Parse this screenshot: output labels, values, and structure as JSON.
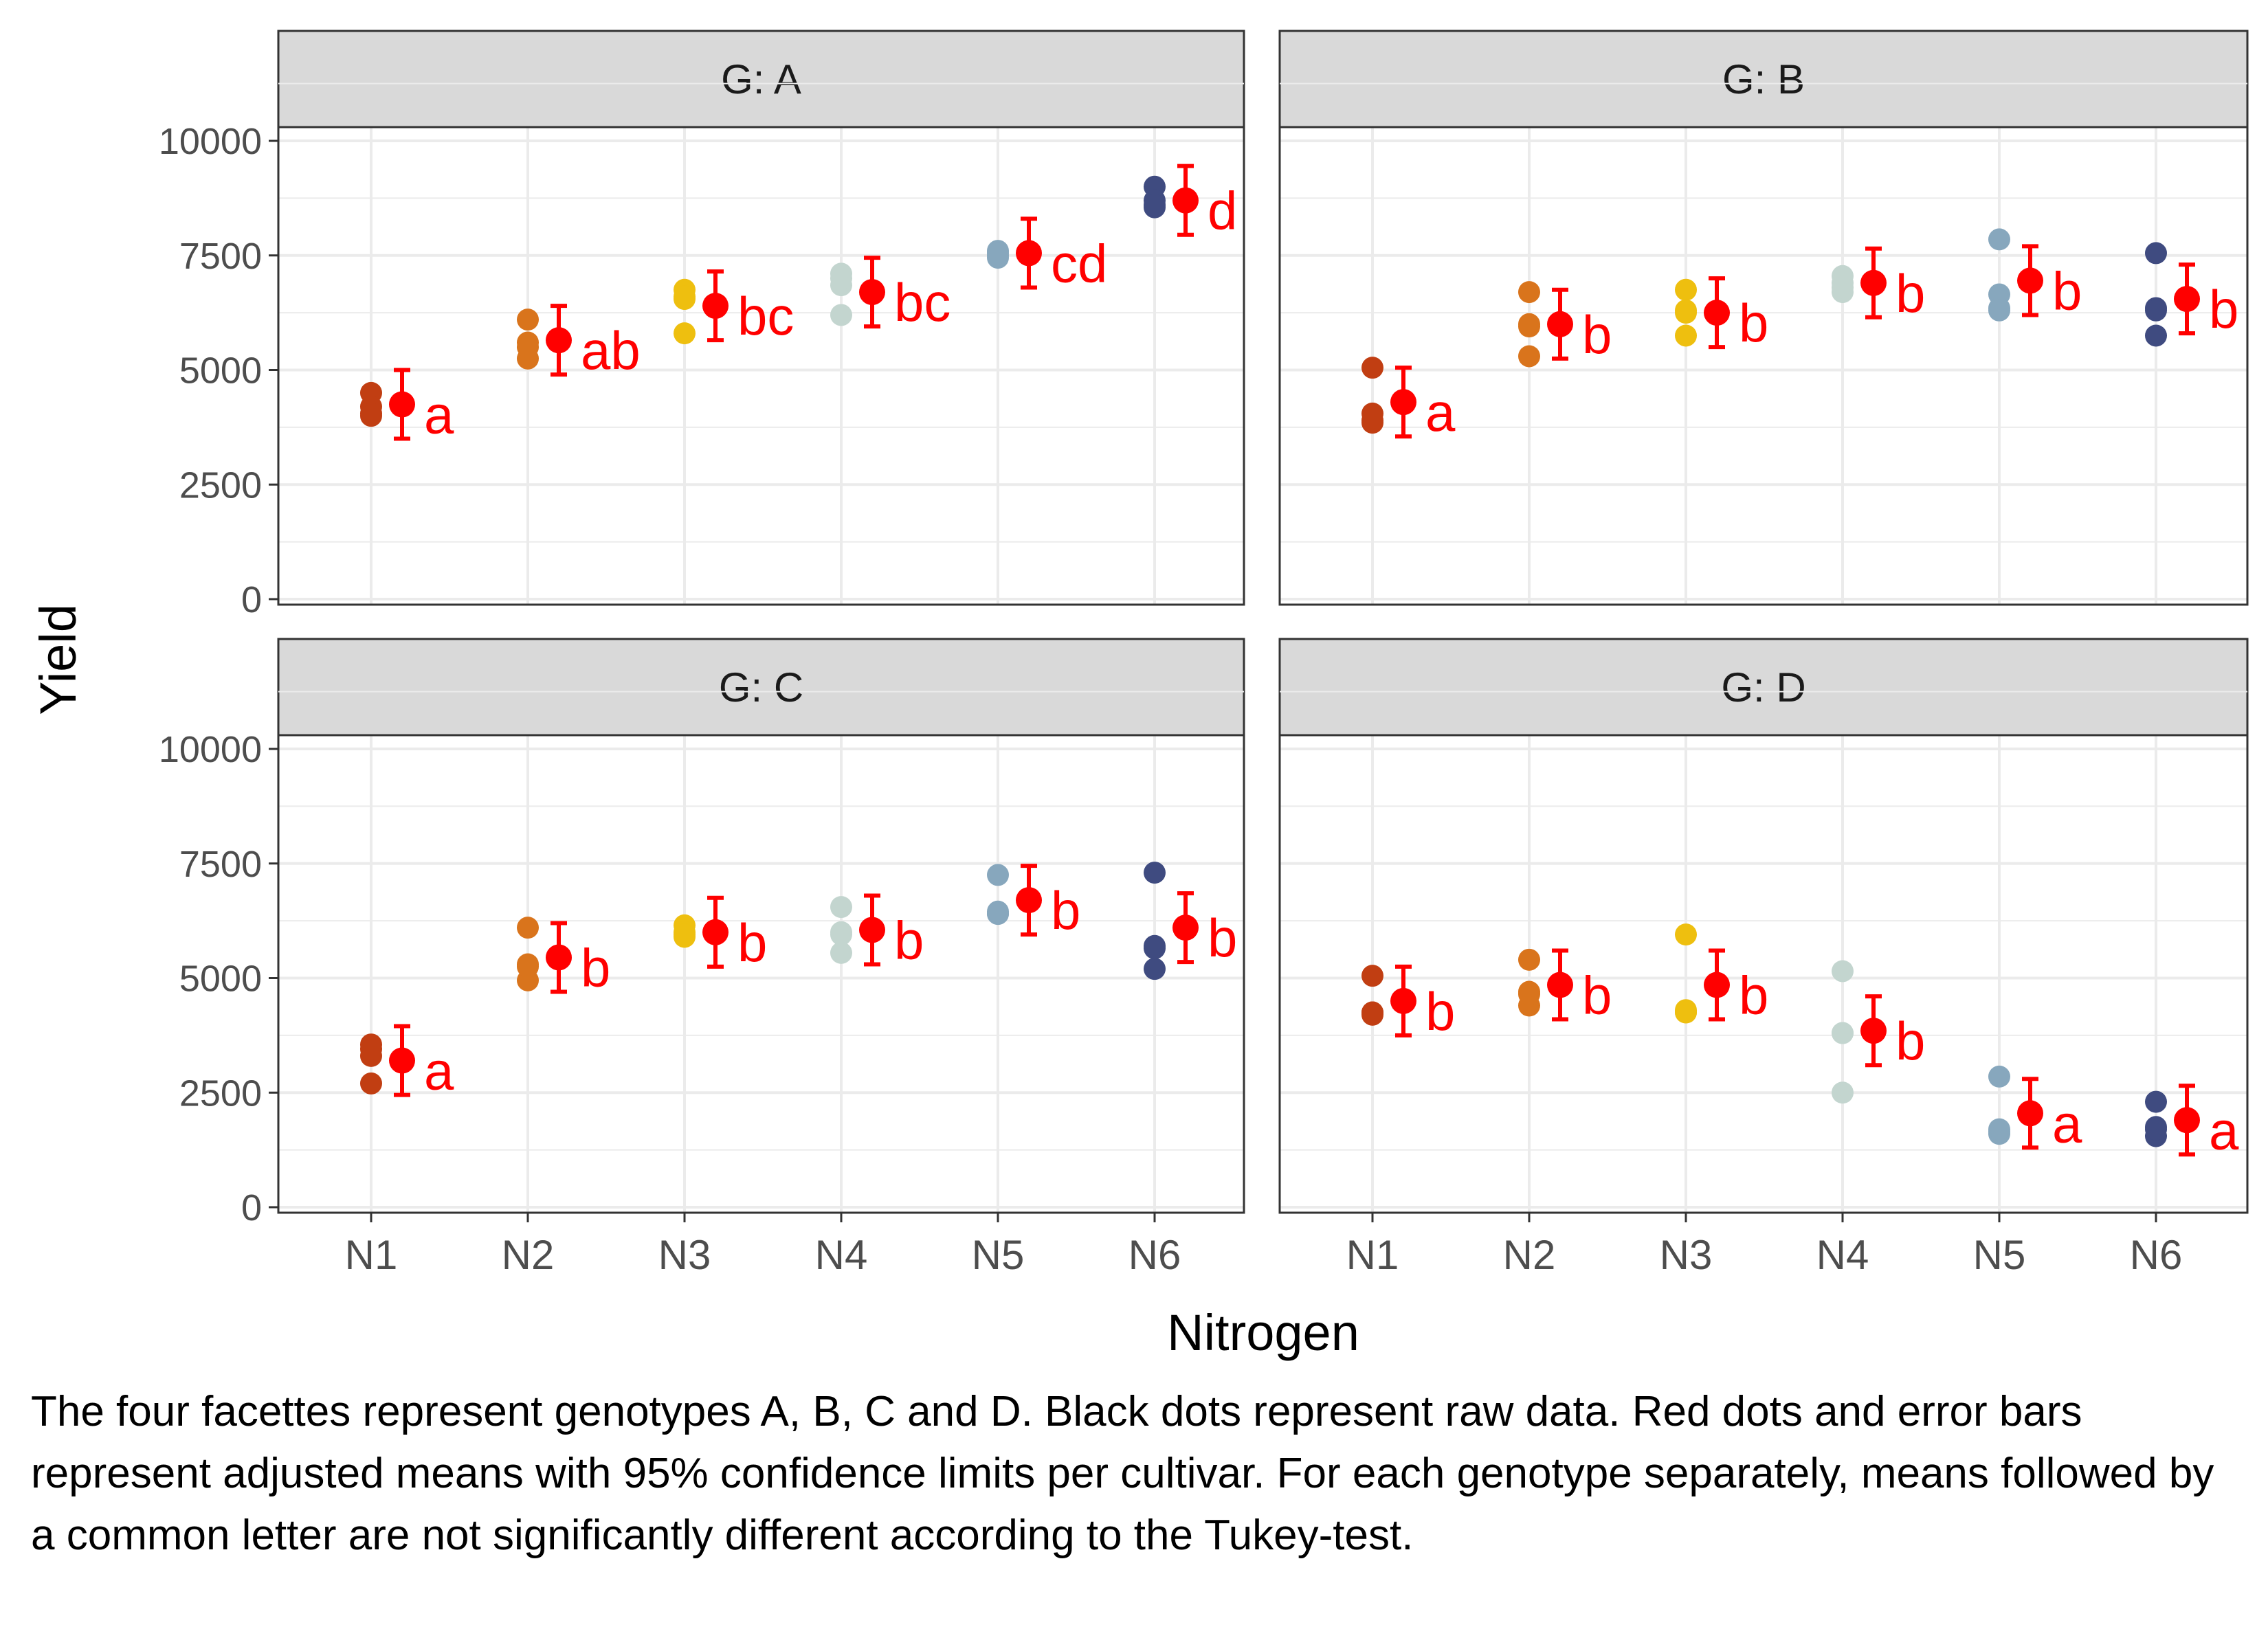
{
  "chart_data": {
    "type": "scatter",
    "x_label": "Nitrogen",
    "y_label": "Yield",
    "ylim": [
      0,
      12000
    ],
    "y_ticks": [
      0,
      2500,
      5000,
      7500,
      10000
    ],
    "categories": [
      "N1",
      "N2",
      "N3",
      "N4",
      "N5",
      "N6"
    ],
    "grid": true,
    "facet_layout": "2x2",
    "colors": {
      "raw_points": [
        "#c13e12",
        "#d9741c",
        "#eebf0f",
        "#c3d5cf",
        "#87a7bd",
        "#3f4b80"
      ],
      "means": "#ff0000",
      "strip_fill": "#d9d9d9",
      "panel_border": "#333333",
      "grid": "#ebebeb"
    },
    "facets": [
      {
        "strip": "G: A",
        "raw": [
          [
            4500,
            4200,
            4050,
            4000
          ],
          [
            6100,
            5600,
            5250,
            5500
          ],
          [
            6750,
            6550,
            5800,
            6600
          ],
          [
            7100,
            6850,
            6200,
            7000
          ],
          [
            7600,
            7450,
            7500,
            7550
          ],
          [
            9000,
            8550,
            8700,
            8600
          ]
        ],
        "means": [
          4250,
          5650,
          6400,
          6700,
          7550,
          8700
        ],
        "ci": [
          [
            3500,
            5000
          ],
          [
            4900,
            6400
          ],
          [
            5650,
            7150
          ],
          [
            5950,
            7450
          ],
          [
            6800,
            8300
          ],
          [
            7950,
            9450
          ]
        ],
        "letters": [
          "a",
          "ab",
          "bc",
          "bc",
          "cd",
          "d"
        ]
      },
      {
        "strip": "G: B",
        "raw": [
          [
            5050,
            4050,
            3850,
            3900
          ],
          [
            6700,
            6000,
            5300,
            5950
          ],
          [
            6750,
            6300,
            5750,
            6250
          ],
          [
            7050,
            6900,
            6700,
            6800
          ],
          [
            7850,
            6650,
            6350,
            6300
          ],
          [
            7550,
            6350,
            5750,
            6300
          ]
        ],
        "means": [
          4300,
          6000,
          6250,
          6900,
          6950,
          6550
        ],
        "ci": [
          [
            3550,
            5050
          ],
          [
            5250,
            6750
          ],
          [
            5500,
            7000
          ],
          [
            6150,
            7650
          ],
          [
            6200,
            7700
          ],
          [
            5800,
            7300
          ]
        ],
        "letters": [
          "a",
          "b",
          "b",
          "b",
          "b",
          "b"
        ]
      },
      {
        "strip": "G: C",
        "raw": [
          [
            3550,
            3300,
            2700,
            3450
          ],
          [
            6100,
            5300,
            4950,
            5250
          ],
          [
            6150,
            5900,
            6000,
            5950
          ],
          [
            6550,
            5950,
            5550,
            6000
          ],
          [
            7250,
            6400,
            6450,
            6400
          ],
          [
            7300,
            5700,
            5200,
            5650
          ]
        ],
        "means": [
          3200,
          5450,
          6000,
          6050,
          6700,
          6100
        ],
        "ci": [
          [
            2450,
            3950
          ],
          [
            4700,
            6200
          ],
          [
            5250,
            6750
          ],
          [
            5300,
            6800
          ],
          [
            5950,
            7450
          ],
          [
            5350,
            6850
          ]
        ],
        "letters": [
          "a",
          "b",
          "b",
          "b",
          "b",
          "b"
        ]
      },
      {
        "strip": "G: D",
        "raw": [
          [
            5050,
            4250,
            4200,
            4250
          ],
          [
            5400,
            4700,
            4400,
            4650
          ],
          [
            5950,
            4300,
            4250,
            4250
          ],
          [
            5150,
            3800,
            2500,
            3800
          ],
          [
            2850,
            1650,
            1600,
            1700
          ],
          [
            2300,
            1750,
            1550,
            1700
          ]
        ],
        "means": [
          4500,
          4850,
          4850,
          3850,
          2050,
          1900
        ],
        "ci": [
          [
            3750,
            5250
          ],
          [
            4100,
            5600
          ],
          [
            4100,
            5600
          ],
          [
            3100,
            4600
          ],
          [
            1300,
            2800
          ],
          [
            1150,
            2650
          ]
        ],
        "letters": [
          "b",
          "b",
          "b",
          "b",
          "a",
          "a"
        ]
      }
    ]
  },
  "caption": "The four facettes represent genotypes A, B, C and D. Black dots represent raw data. Red dots and error bars represent adjusted means with 95% confidence limits per cultivar. For each genotype separately, means followed by a common letter are not significantly different according to the Tukey-test."
}
